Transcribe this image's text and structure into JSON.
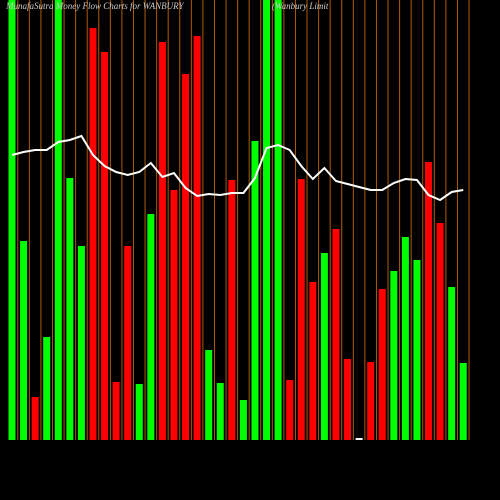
{
  "chart_data": {
    "type": "bar",
    "title": "MunafaSutra  Money Flow  Charts for WANBURY",
    "subtitle": "(Wanbury Limit",
    "categories": [
      null,
      null,
      null,
      null,
      null,
      null,
      null,
      null,
      null,
      null,
      null,
      null,
      null,
      null,
      null,
      null,
      null,
      null,
      null,
      null,
      null,
      null,
      null,
      null,
      null,
      null,
      null,
      null,
      null,
      null,
      null,
      null,
      null,
      null,
      null,
      null,
      null,
      null,
      null,
      null
    ],
    "values": [
      440,
      199,
      43,
      103,
      440,
      262,
      194,
      412,
      388,
      58,
      194,
      56,
      226,
      398,
      250,
      366,
      404,
      90,
      57,
      260,
      40,
      299,
      440,
      440,
      60,
      261,
      158,
      187,
      211,
      81,
      2,
      78,
      151,
      169,
      203,
      180,
      278,
      217,
      153,
      77
    ],
    "colors": [
      "#00ff00",
      "#00ff00",
      "#ff0000",
      "#00ff00",
      "#00ff00",
      "#00ff00",
      "#00ff00",
      "#ff0000",
      "#ff0000",
      "#ff0000",
      "#ff0000",
      "#00ff00",
      "#00ff00",
      "#ff0000",
      "#ff0000",
      "#ff0000",
      "#ff0000",
      "#00ff00",
      "#00ff00",
      "#ff0000",
      "#00ff00",
      "#00ff00",
      "#00ff00",
      "#00ff00",
      "#ff0000",
      "#ff0000",
      "#ff0000",
      "#00ff00",
      "#ff0000",
      "#ff0000",
      "#ffffff",
      "#ff0000",
      "#ff0000",
      "#00ff00",
      "#00ff00",
      "#00ff00",
      "#ff0000",
      "#ff0000",
      "#00ff00",
      "#00ff00"
    ],
    "line": {
      "color": "#ffffff",
      "values": [
        285,
        288,
        290,
        290,
        298,
        300,
        304,
        285,
        274,
        268,
        265,
        268,
        277,
        263,
        267,
        252,
        244,
        246,
        245,
        247,
        247,
        262,
        292,
        295,
        290,
        274,
        261,
        272,
        259,
        256,
        253,
        250,
        250,
        257,
        261,
        260,
        245,
        240,
        248,
        250
      ]
    },
    "ylim": [
      0,
      440
    ]
  }
}
